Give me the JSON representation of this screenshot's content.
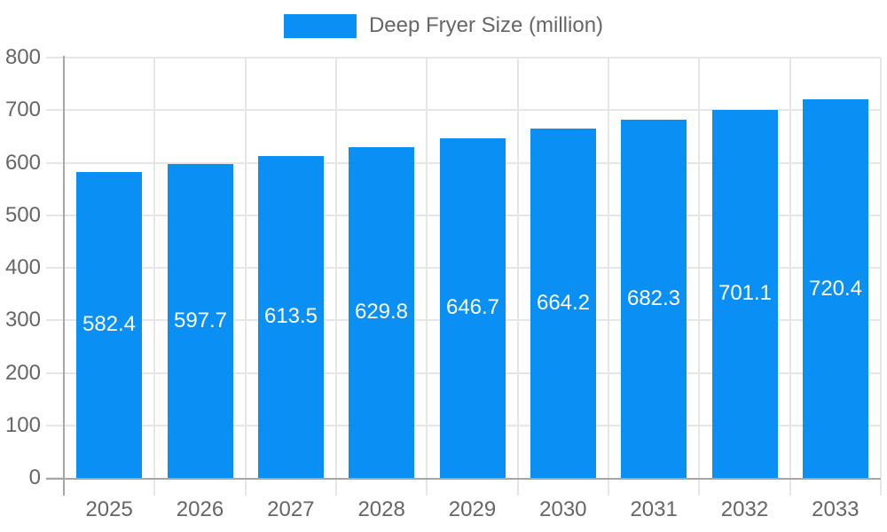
{
  "legend": {
    "label": "Deep Fryer Size (million)"
  },
  "colors": {
    "bar": "#0a90f5",
    "gridline": "#e6e6e6",
    "axis": "#a6a6a6",
    "text": "#666666",
    "value_label": "#ffffff"
  },
  "chart_data": {
    "type": "bar",
    "title": "Deep Fryer Size (million)",
    "categories": [
      "2025",
      "2026",
      "2027",
      "2028",
      "2029",
      "2030",
      "2031",
      "2032",
      "2033"
    ],
    "series": [
      {
        "name": "Deep Fryer Size (million)",
        "values": [
          582.4,
          597.7,
          613.5,
          629.8,
          646.7,
          664.2,
          682.3,
          701.1,
          720.4
        ],
        "value_labels": [
          "582.4",
          "597.7",
          "613.5",
          "629.8",
          "646.7",
          "664.2",
          "682.3",
          "701.1",
          "720.4"
        ]
      }
    ],
    "xlabel": "",
    "ylabel": "",
    "ylim": [
      0,
      800
    ],
    "y_ticks": [
      0,
      100,
      200,
      300,
      400,
      500,
      600,
      700,
      800
    ],
    "grid": true,
    "legend_position": "top-center",
    "value_labels_position": "center-of-bar"
  }
}
